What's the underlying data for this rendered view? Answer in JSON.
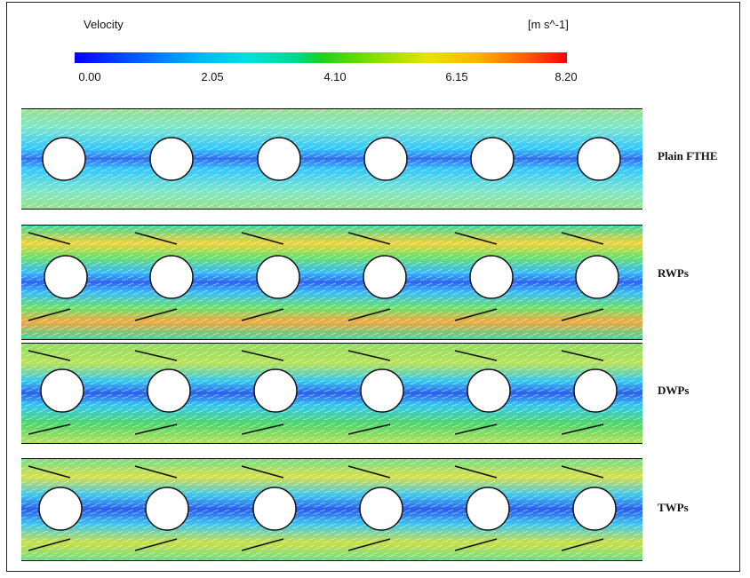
{
  "colorbar": {
    "title": "Velocity",
    "unit": "[m s^-1]",
    "ticks": [
      "0.00",
      "2.05",
      "4.10",
      "6.15",
      "8.20"
    ],
    "min": 0.0,
    "max": 8.2,
    "colors": [
      "#0000ff",
      "#00b4ff",
      "#1ad21a",
      "#e8e400",
      "#ff0000"
    ]
  },
  "panels": [
    {
      "label": "Plain FTHE",
      "winglets": false
    },
    {
      "label": "RWPs",
      "winglets": true
    },
    {
      "label": "DWPs",
      "winglets": true
    },
    {
      "label": "TWPs",
      "winglets": true
    }
  ],
  "tubes_per_row": 6
}
